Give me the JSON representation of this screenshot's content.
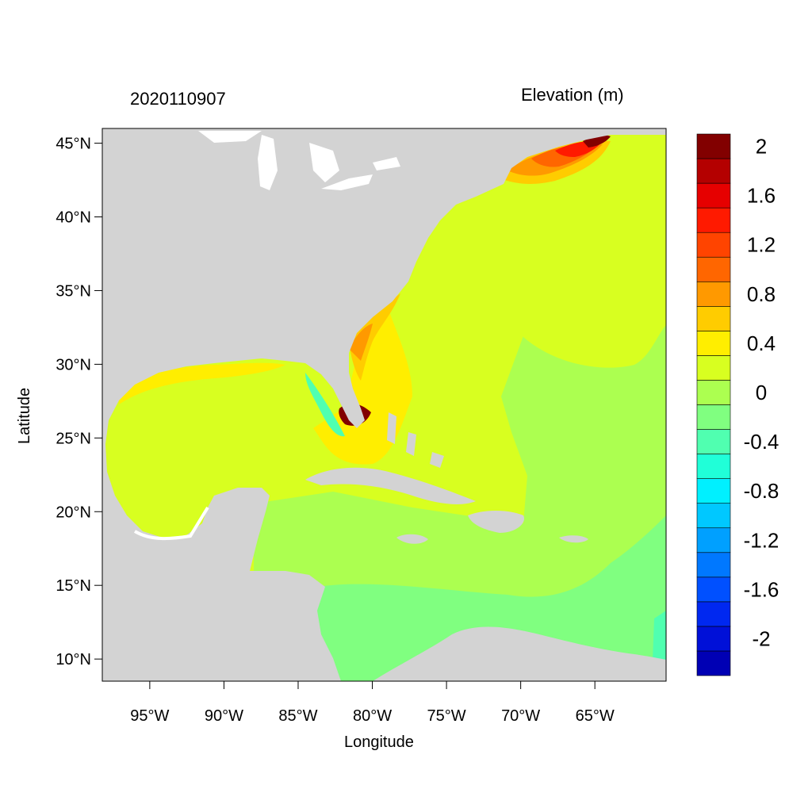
{
  "figure": {
    "timestamp": "2020110907",
    "variable_title": "Elevation (m)",
    "x_axis_label": "Longitude",
    "y_axis_label": "Latitude"
  },
  "map": {
    "lon_range": [
      -98.2,
      -60.2
    ],
    "lat_range": [
      8.5,
      46.0
    ],
    "x_ticks": [
      {
        "value": -95,
        "label": "95°W"
      },
      {
        "value": -90,
        "label": "90°W"
      },
      {
        "value": -85,
        "label": "85°W"
      },
      {
        "value": -80,
        "label": "80°W"
      },
      {
        "value": -75,
        "label": "75°W"
      },
      {
        "value": -70,
        "label": "70°W"
      },
      {
        "value": -65,
        "label": "65°W"
      }
    ],
    "y_ticks": [
      {
        "value": 45,
        "label": "45°N"
      },
      {
        "value": 40,
        "label": "40°N"
      },
      {
        "value": 35,
        "label": "35°N"
      },
      {
        "value": 30,
        "label": "30°N"
      },
      {
        "value": 25,
        "label": "25°N"
      },
      {
        "value": 20,
        "label": "20°N"
      },
      {
        "value": 15,
        "label": "15°N"
      },
      {
        "value": 10,
        "label": "10°N"
      }
    ],
    "land_color": "#d3d3d3"
  },
  "colorbar": {
    "colors": [
      "#0000b4",
      "#0010d8",
      "#0028f0",
      "#0050ff",
      "#0078ff",
      "#00a0ff",
      "#00c8ff",
      "#00f0ff",
      "#20ffd8",
      "#50ffb0",
      "#80ff80",
      "#acff50",
      "#d8ff20",
      "#ffee00",
      "#ffcc00",
      "#ff9900",
      "#ff6600",
      "#ff4400",
      "#ff1a00",
      "#e60000",
      "#b40000",
      "#820000"
    ],
    "labels": [
      {
        "value": 2,
        "label": "2"
      },
      {
        "value": 1.6,
        "label": "1.6"
      },
      {
        "value": 1.2,
        "label": "1.2"
      },
      {
        "value": 0.8,
        "label": "0.8"
      },
      {
        "value": 0.4,
        "label": "0.4"
      },
      {
        "value": 0,
        "label": "0"
      },
      {
        "value": -0.4,
        "label": "-0.4"
      },
      {
        "value": -0.8,
        "label": "-0.8"
      },
      {
        "value": -1.2,
        "label": "-1.2"
      },
      {
        "value": -1.6,
        "label": "-1.6"
      },
      {
        "value": -2,
        "label": "-2"
      }
    ]
  }
}
